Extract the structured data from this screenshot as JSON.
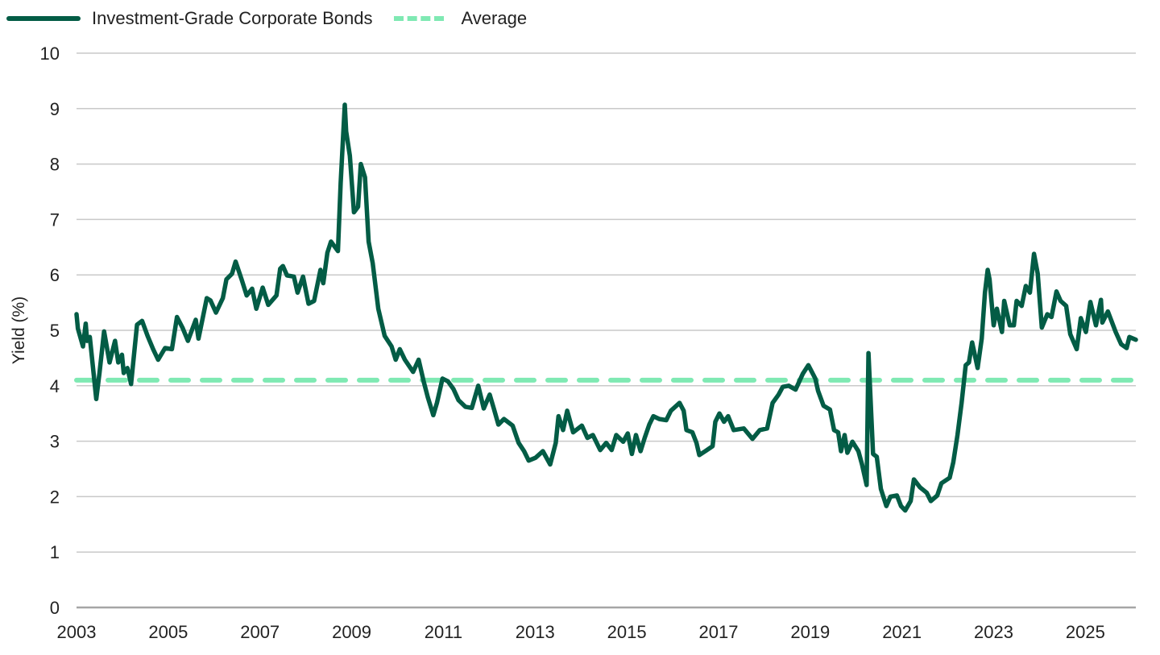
{
  "chart_data": {
    "type": "line",
    "title": "",
    "xlabel": "",
    "ylabel": "Yield (%)",
    "xlim": [
      2003,
      2026.1
    ],
    "ylim": [
      0,
      10
    ],
    "grid": true,
    "legend_position": "top-left",
    "x_ticks": [
      "2003",
      "2005",
      "2007",
      "2009",
      "2011",
      "2013",
      "2015",
      "2017",
      "2019",
      "2021",
      "2023",
      "2025"
    ],
    "y_ticks": [
      "0",
      "1",
      "2",
      "3",
      "4",
      "5",
      "6",
      "7",
      "8",
      "9",
      "10"
    ],
    "colors": {
      "series": "#035c45",
      "average": "#7fe9b3",
      "grid": "#c9c9c9",
      "axis": "#a6a6a6"
    },
    "series": [
      {
        "name": "Investment-Grade Corporate Bonds",
        "style": "solid",
        "points": [
          [
            2003.0,
            5.29
          ],
          [
            2003.03,
            5.03
          ],
          [
            2003.14,
            4.71
          ],
          [
            2003.2,
            5.12
          ],
          [
            2003.23,
            4.81
          ],
          [
            2003.29,
            4.88
          ],
          [
            2003.43,
            3.76
          ],
          [
            2003.5,
            4.23
          ],
          [
            2003.6,
            4.98
          ],
          [
            2003.72,
            4.42
          ],
          [
            2003.84,
            4.81
          ],
          [
            2003.91,
            4.42
          ],
          [
            2003.99,
            4.56
          ],
          [
            2004.03,
            4.23
          ],
          [
            2004.11,
            4.32
          ],
          [
            2004.19,
            4.03
          ],
          [
            2004.32,
            5.1
          ],
          [
            2004.43,
            5.17
          ],
          [
            2004.55,
            4.9
          ],
          [
            2004.67,
            4.66
          ],
          [
            2004.78,
            4.47
          ],
          [
            2004.93,
            4.68
          ],
          [
            2005.08,
            4.66
          ],
          [
            2005.19,
            5.24
          ],
          [
            2005.31,
            5.05
          ],
          [
            2005.43,
            4.81
          ],
          [
            2005.6,
            5.19
          ],
          [
            2005.66,
            4.85
          ],
          [
            2005.84,
            5.58
          ],
          [
            2005.92,
            5.54
          ],
          [
            2006.04,
            5.32
          ],
          [
            2006.19,
            5.58
          ],
          [
            2006.27,
            5.92
          ],
          [
            2006.39,
            6.02
          ],
          [
            2006.47,
            6.24
          ],
          [
            2006.6,
            5.92
          ],
          [
            2006.71,
            5.63
          ],
          [
            2006.83,
            5.75
          ],
          [
            2006.92,
            5.39
          ],
          [
            2007.06,
            5.77
          ],
          [
            2007.18,
            5.46
          ],
          [
            2007.36,
            5.63
          ],
          [
            2007.44,
            6.11
          ],
          [
            2007.5,
            6.16
          ],
          [
            2007.59,
            5.99
          ],
          [
            2007.74,
            5.97
          ],
          [
            2007.82,
            5.68
          ],
          [
            2007.94,
            5.97
          ],
          [
            2008.06,
            5.48
          ],
          [
            2008.18,
            5.53
          ],
          [
            2008.32,
            6.09
          ],
          [
            2008.38,
            5.85
          ],
          [
            2008.47,
            6.4
          ],
          [
            2008.55,
            6.6
          ],
          [
            2008.7,
            6.43
          ],
          [
            2008.76,
            7.66
          ],
          [
            2008.85,
            9.07
          ],
          [
            2008.88,
            8.59
          ],
          [
            2008.96,
            8.15
          ],
          [
            2009.05,
            7.13
          ],
          [
            2009.14,
            7.23
          ],
          [
            2009.2,
            8.0
          ],
          [
            2009.29,
            7.76
          ],
          [
            2009.37,
            6.6
          ],
          [
            2009.46,
            6.21
          ],
          [
            2009.58,
            5.39
          ],
          [
            2009.72,
            4.9
          ],
          [
            2009.87,
            4.71
          ],
          [
            2009.96,
            4.47
          ],
          [
            2010.05,
            4.66
          ],
          [
            2010.16,
            4.47
          ],
          [
            2010.34,
            4.25
          ],
          [
            2010.46,
            4.47
          ],
          [
            2010.57,
            4.08
          ],
          [
            2010.66,
            3.79
          ],
          [
            2010.78,
            3.47
          ],
          [
            2010.86,
            3.69
          ],
          [
            2010.98,
            4.13
          ],
          [
            2011.1,
            4.08
          ],
          [
            2011.22,
            3.94
          ],
          [
            2011.33,
            3.74
          ],
          [
            2011.48,
            3.62
          ],
          [
            2011.62,
            3.6
          ],
          [
            2011.76,
            4.0
          ],
          [
            2011.88,
            3.59
          ],
          [
            2012.01,
            3.84
          ],
          [
            2012.1,
            3.59
          ],
          [
            2012.2,
            3.3
          ],
          [
            2012.32,
            3.4
          ],
          [
            2012.51,
            3.28
          ],
          [
            2012.64,
            2.97
          ],
          [
            2012.76,
            2.82
          ],
          [
            2012.86,
            2.65
          ],
          [
            2013.01,
            2.7
          ],
          [
            2013.17,
            2.82
          ],
          [
            2013.33,
            2.58
          ],
          [
            2013.45,
            2.97
          ],
          [
            2013.51,
            3.45
          ],
          [
            2013.61,
            3.2
          ],
          [
            2013.7,
            3.55
          ],
          [
            2013.83,
            3.16
          ],
          [
            2014.02,
            3.28
          ],
          [
            2014.14,
            3.06
          ],
          [
            2014.26,
            3.11
          ],
          [
            2014.42,
            2.84
          ],
          [
            2014.55,
            2.97
          ],
          [
            2014.67,
            2.84
          ],
          [
            2014.77,
            3.11
          ],
          [
            2014.92,
            2.99
          ],
          [
            2015.02,
            3.14
          ],
          [
            2015.11,
            2.77
          ],
          [
            2015.2,
            3.11
          ],
          [
            2015.3,
            2.82
          ],
          [
            2015.39,
            3.06
          ],
          [
            2015.49,
            3.3
          ],
          [
            2015.58,
            3.45
          ],
          [
            2015.71,
            3.4
          ],
          [
            2015.86,
            3.38
          ],
          [
            2015.96,
            3.55
          ],
          [
            2016.15,
            3.69
          ],
          [
            2016.24,
            3.55
          ],
          [
            2016.3,
            3.2
          ],
          [
            2016.43,
            3.16
          ],
          [
            2016.52,
            2.97
          ],
          [
            2016.58,
            2.75
          ],
          [
            2016.71,
            2.82
          ],
          [
            2016.87,
            2.91
          ],
          [
            2016.93,
            3.35
          ],
          [
            2017.02,
            3.5
          ],
          [
            2017.12,
            3.35
          ],
          [
            2017.21,
            3.45
          ],
          [
            2017.33,
            3.2
          ],
          [
            2017.55,
            3.23
          ],
          [
            2017.74,
            3.04
          ],
          [
            2017.9,
            3.2
          ],
          [
            2018.06,
            3.23
          ],
          [
            2018.18,
            3.69
          ],
          [
            2018.31,
            3.84
          ],
          [
            2018.4,
            3.98
          ],
          [
            2018.53,
            4.0
          ],
          [
            2018.68,
            3.93
          ],
          [
            2018.84,
            4.22
          ],
          [
            2018.96,
            4.37
          ],
          [
            2019.11,
            4.13
          ],
          [
            2019.17,
            3.91
          ],
          [
            2019.29,
            3.64
          ],
          [
            2019.43,
            3.57
          ],
          [
            2019.52,
            3.2
          ],
          [
            2019.61,
            3.16
          ],
          [
            2019.67,
            2.82
          ],
          [
            2019.75,
            3.11
          ],
          [
            2019.81,
            2.79
          ],
          [
            2019.92,
            2.99
          ],
          [
            2020.05,
            2.82
          ],
          [
            2020.13,
            2.58
          ],
          [
            2020.23,
            2.21
          ],
          [
            2020.27,
            4.59
          ],
          [
            2020.33,
            3.5
          ],
          [
            2020.37,
            2.77
          ],
          [
            2020.45,
            2.72
          ],
          [
            2020.54,
            2.14
          ],
          [
            2020.66,
            1.83
          ],
          [
            2020.75,
            2.0
          ],
          [
            2020.89,
            2.02
          ],
          [
            2020.98,
            1.83
          ],
          [
            2021.07,
            1.75
          ],
          [
            2021.19,
            1.92
          ],
          [
            2021.26,
            2.31
          ],
          [
            2021.39,
            2.17
          ],
          [
            2021.54,
            2.07
          ],
          [
            2021.63,
            1.92
          ],
          [
            2021.77,
            2.02
          ],
          [
            2021.86,
            2.24
          ],
          [
            2022.04,
            2.34
          ],
          [
            2022.12,
            2.62
          ],
          [
            2022.21,
            3.11
          ],
          [
            2022.3,
            3.69
          ],
          [
            2022.39,
            4.37
          ],
          [
            2022.46,
            4.42
          ],
          [
            2022.53,
            4.78
          ],
          [
            2022.65,
            4.32
          ],
          [
            2022.74,
            4.85
          ],
          [
            2022.81,
            5.68
          ],
          [
            2022.87,
            6.09
          ],
          [
            2022.91,
            5.92
          ],
          [
            2023.0,
            5.09
          ],
          [
            2023.07,
            5.39
          ],
          [
            2023.18,
            4.97
          ],
          [
            2023.23,
            5.53
          ],
          [
            2023.35,
            5.09
          ],
          [
            2023.44,
            5.09
          ],
          [
            2023.5,
            5.53
          ],
          [
            2023.61,
            5.44
          ],
          [
            2023.7,
            5.8
          ],
          [
            2023.79,
            5.68
          ],
          [
            2023.88,
            6.38
          ],
          [
            2023.96,
            6.02
          ],
          [
            2024.05,
            5.05
          ],
          [
            2024.17,
            5.29
          ],
          [
            2024.26,
            5.24
          ],
          [
            2024.37,
            5.7
          ],
          [
            2024.46,
            5.53
          ],
          [
            2024.58,
            5.44
          ],
          [
            2024.67,
            4.93
          ],
          [
            2024.81,
            4.66
          ],
          [
            2024.9,
            5.22
          ],
          [
            2025.01,
            4.97
          ],
          [
            2025.11,
            5.51
          ],
          [
            2025.23,
            5.09
          ],
          [
            2025.34,
            5.55
          ],
          [
            2025.37,
            5.14
          ],
          [
            2025.49,
            5.34
          ],
          [
            2025.66,
            4.97
          ],
          [
            2025.78,
            4.75
          ],
          [
            2025.9,
            4.68
          ],
          [
            2025.96,
            4.88
          ],
          [
            2026.1,
            4.83
          ]
        ]
      },
      {
        "name": "Average",
        "style": "dashed",
        "value": 4.1
      }
    ]
  }
}
